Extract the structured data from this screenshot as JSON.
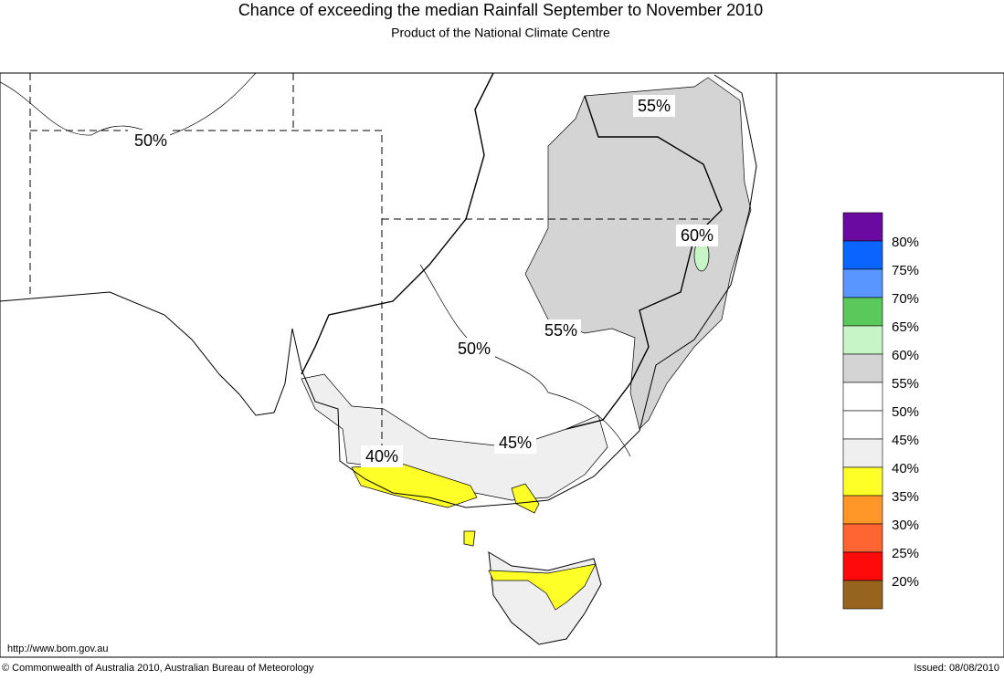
{
  "header": {
    "title": "Chance of exceeding the median Rainfall September to November 2010",
    "subtitle": "Product of the National Climate Centre"
  },
  "map": {
    "labels": [
      "55%",
      "50%",
      "60%",
      "55%",
      "50%",
      "45%",
      "40%"
    ],
    "url": "http://www.bom.gov.au"
  },
  "legend": {
    "labels": [
      "80%",
      "75%",
      "70%",
      "65%",
      "60%",
      "55%",
      "50%",
      "45%",
      "40%",
      "35%",
      "30%",
      "25%",
      "20%"
    ],
    "colors": [
      "#6a0aa0",
      "#0a64ff",
      "#5a96ff",
      "#5ac85a",
      "#c8f5c8",
      "#d4d4d4",
      "#ffffff",
      "#ffffff",
      "#efefef",
      "#ffff28",
      "#ff9628",
      "#ff6432",
      "#ff0a0a",
      "#96641e"
    ]
  },
  "footer": {
    "copyright": "© Commonwealth of Australia 2010, Australian Bureau of Meteorology",
    "issued": "Issued: 08/08/2010"
  }
}
